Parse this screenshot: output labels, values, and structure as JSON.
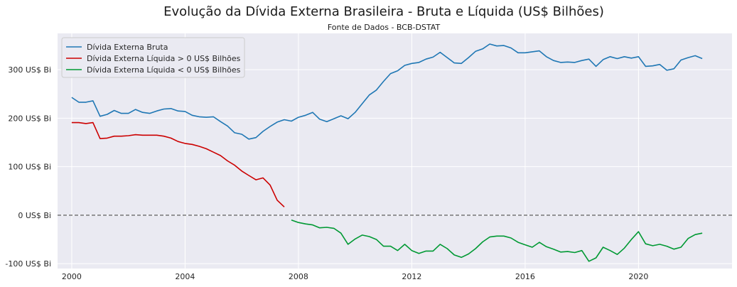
{
  "chart_data": {
    "type": "line",
    "title": "Evolução da Dívida Externa Brasileira - Bruta e Líquida (US$ Bilhões)",
    "subtitle": "Fonte de Dados - BCB-DSTAT",
    "xlabel": "",
    "ylabel": "",
    "xlim": [
      1999.5,
      2023.3
    ],
    "ylim": [
      -110,
      375
    ],
    "grid": true,
    "reference_line": {
      "y": 0,
      "style": "dashed"
    },
    "x_ticks": [
      2000,
      2004,
      2008,
      2012,
      2016,
      2020
    ],
    "x_tick_labels": [
      "2000",
      "2004",
      "2008",
      "2012",
      "2016",
      "2020"
    ],
    "y_ticks": [
      -100,
      0,
      100,
      200,
      300
    ],
    "y_tick_labels": [
      "-100 US$ Bi",
      "0 US$ Bi",
      "100 US$ Bi",
      "200 US$ Bi",
      "300 US$ Bi"
    ],
    "legend_position": "top-left",
    "series": [
      {
        "name": "Dívida Externa Bruta",
        "color": "#1f77b4",
        "x": [
          2000.0,
          2000.25,
          2000.5,
          2000.75,
          2001.0,
          2001.25,
          2001.5,
          2001.75,
          2002.0,
          2002.25,
          2002.5,
          2002.75,
          2003.0,
          2003.25,
          2003.5,
          2003.75,
          2004.0,
          2004.25,
          2004.5,
          2004.75,
          2005.0,
          2005.25,
          2005.5,
          2005.75,
          2006.0,
          2006.25,
          2006.5,
          2006.75,
          2007.0,
          2007.25,
          2007.5,
          2007.75,
          2008.0,
          2008.25,
          2008.5,
          2008.75,
          2009.0,
          2009.25,
          2009.5,
          2009.75,
          2010.0,
          2010.25,
          2010.5,
          2010.75,
          2011.0,
          2011.25,
          2011.5,
          2011.75,
          2012.0,
          2012.25,
          2012.5,
          2012.75,
          2013.0,
          2013.25,
          2013.5,
          2013.75,
          2014.0,
          2014.25,
          2014.5,
          2014.75,
          2015.0,
          2015.25,
          2015.5,
          2015.75,
          2016.0,
          2016.25,
          2016.5,
          2016.75,
          2017.0,
          2017.25,
          2017.5,
          2017.75,
          2018.0,
          2018.25,
          2018.5,
          2018.75,
          2019.0,
          2019.25,
          2019.5,
          2019.75,
          2020.0,
          2020.25,
          2020.5,
          2020.75,
          2021.0,
          2021.25,
          2021.5,
          2021.75,
          2022.0,
          2022.25
        ],
        "values": [
          243,
          233,
          233,
          236,
          204,
          208,
          216,
          210,
          210,
          218,
          212,
          210,
          215,
          219,
          220,
          215,
          214,
          206,
          203,
          202,
          203,
          193,
          184,
          170,
          167,
          157,
          160,
          173,
          183,
          192,
          197,
          194,
          202,
          206,
          212,
          198,
          193,
          199,
          205,
          199,
          212,
          230,
          248,
          258,
          276,
          292,
          298,
          309,
          313,
          315,
          322,
          326,
          336,
          325,
          314,
          313,
          325,
          338,
          343,
          353,
          349,
          350,
          345,
          335,
          335,
          337,
          339,
          327,
          319,
          315,
          316,
          315,
          319,
          322,
          307,
          321,
          327,
          323,
          327,
          324,
          327,
          307,
          308,
          311,
          299,
          302,
          320,
          325,
          329,
          323
        ]
      },
      {
        "name": "Dívida Externa Líquida > 0 US$ Bilhões",
        "color": "#cc0000",
        "x": [
          2000.0,
          2000.25,
          2000.5,
          2000.75,
          2001.0,
          2001.25,
          2001.5,
          2001.75,
          2002.0,
          2002.25,
          2002.5,
          2002.75,
          2003.0,
          2003.25,
          2003.5,
          2003.75,
          2004.0,
          2004.25,
          2004.5,
          2004.75,
          2005.0,
          2005.25,
          2005.5,
          2005.75,
          2006.0,
          2006.25,
          2006.5,
          2006.75,
          2007.0,
          2007.25,
          2007.5
        ],
        "values": [
          191,
          191,
          189,
          191,
          158,
          159,
          163,
          163,
          164,
          166,
          165,
          165,
          165,
          163,
          159,
          152,
          148,
          146,
          142,
          137,
          130,
          123,
          112,
          103,
          91,
          82,
          73,
          77,
          62,
          31,
          17
        ]
      },
      {
        "name": "Dívida Externa Líquida < 0 US$ Bilhões",
        "color": "#009933",
        "x": [
          2007.75,
          2008.0,
          2008.25,
          2008.5,
          2008.75,
          2009.0,
          2009.25,
          2009.5,
          2009.75,
          2010.0,
          2010.25,
          2010.5,
          2010.75,
          2011.0,
          2011.25,
          2011.5,
          2011.75,
          2012.0,
          2012.25,
          2012.5,
          2012.75,
          2013.0,
          2013.25,
          2013.5,
          2013.75,
          2014.0,
          2014.25,
          2014.5,
          2014.75,
          2015.0,
          2015.25,
          2015.5,
          2015.75,
          2016.0,
          2016.25,
          2016.5,
          2016.75,
          2017.0,
          2017.25,
          2017.5,
          2017.75,
          2018.0,
          2018.25,
          2018.5,
          2018.75,
          2019.0,
          2019.25,
          2019.5,
          2019.75,
          2020.0,
          2020.25,
          2020.5,
          2020.75,
          2021.0,
          2021.25,
          2021.5,
          2021.75,
          2022.0,
          2022.25
        ],
        "values": [
          -10,
          -15,
          -18,
          -20,
          -26,
          -25,
          -27,
          -37,
          -60,
          -49,
          -41,
          -44,
          -50,
          -64,
          -64,
          -73,
          -60,
          -73,
          -79,
          -74,
          -74,
          -60,
          -69,
          -82,
          -87,
          -80,
          -69,
          -55,
          -45,
          -43,
          -43,
          -47,
          -56,
          -61,
          -66,
          -56,
          -65,
          -70,
          -76,
          -75,
          -77,
          -73,
          -95,
          -88,
          -66,
          -73,
          -81,
          -68,
          -50,
          -34,
          -59,
          -63,
          -60,
          -64,
          -70,
          -66,
          -48,
          -40,
          -37
        ]
      }
    ]
  }
}
